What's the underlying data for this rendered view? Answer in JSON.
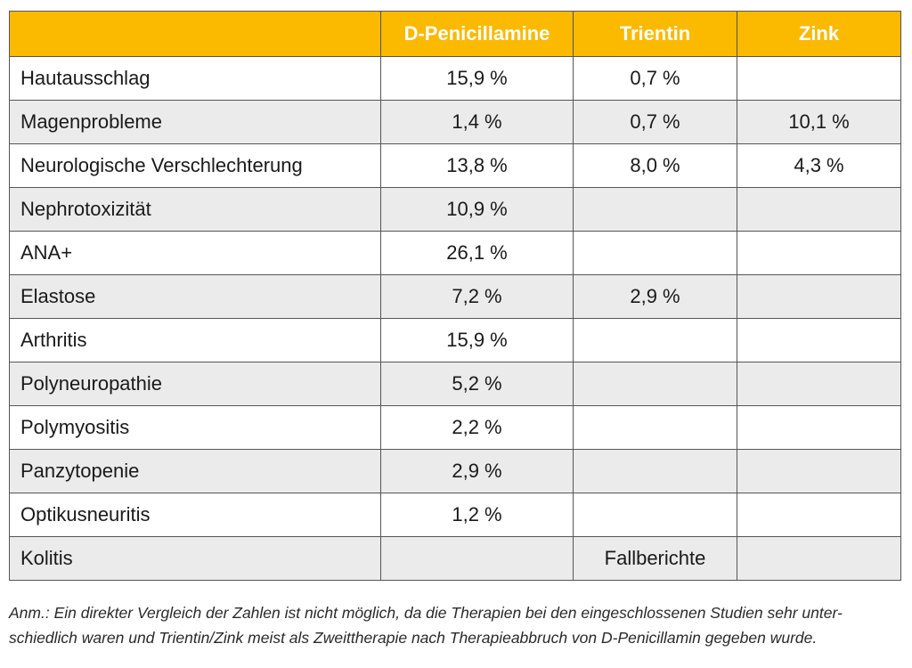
{
  "header": {
    "col0": "",
    "col1": "D-Penicillamine",
    "col2": "Trientin",
    "col3": "Zink"
  },
  "rows": [
    {
      "label": "Hautausschlag",
      "d_pen": "15,9 %",
      "trientin": "0,7 %",
      "zink": ""
    },
    {
      "label": "Magenprobleme",
      "d_pen": "1,4 %",
      "trientin": "0,7 %",
      "zink": "10,1 %"
    },
    {
      "label": "Neurologische Verschlechterung",
      "d_pen": "13,8 %",
      "trientin": "8,0 %",
      "zink": "4,3 %"
    },
    {
      "label": "Nephrotoxizität",
      "d_pen": "10,9 %",
      "trientin": "",
      "zink": ""
    },
    {
      "label": "ANA+",
      "d_pen": "26,1 %",
      "trientin": "",
      "zink": ""
    },
    {
      "label": "Elastose",
      "d_pen": "7,2 %",
      "trientin": "2,9 %",
      "zink": ""
    },
    {
      "label": "Arthritis",
      "d_pen": "15,9 %",
      "trientin": "",
      "zink": ""
    },
    {
      "label": "Polyneuropathie",
      "d_pen": "5,2 %",
      "trientin": "",
      "zink": ""
    },
    {
      "label": "Polymyositis",
      "d_pen": "2,2 %",
      "trientin": "",
      "zink": ""
    },
    {
      "label": "Panzytopenie",
      "d_pen": "2,9 %",
      "trientin": "",
      "zink": ""
    },
    {
      "label": "Optikusneuritis",
      "d_pen": "1,2 %",
      "trientin": "",
      "zink": ""
    },
    {
      "label": "Kolitis",
      "d_pen": "",
      "trientin": "Fallberichte",
      "zink": ""
    }
  ],
  "note": {
    "line1": "Anm.: Ein direkter Vergleich der Zahlen ist nicht möglich, da die Therapien bei den eingeschlossenen Studien sehr unter-",
    "line2": "schiedlich waren und Trientin/Zink meist als Zweittherapie nach Therapieabbruch von D-Penicillamin gegeben wurde."
  },
  "colors": {
    "header_bg": "#fbb900",
    "header_text": "#ffffff",
    "shaded_row": "#ebebeb",
    "border": "#555555"
  }
}
